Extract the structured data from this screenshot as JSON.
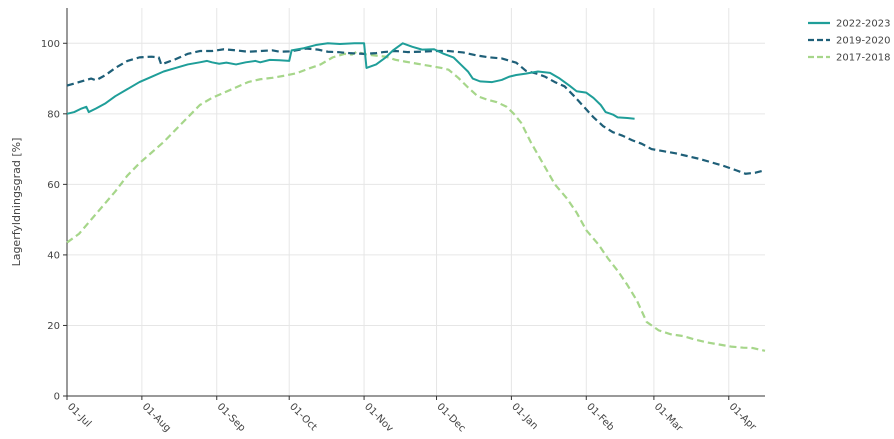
{
  "chart_data": {
    "type": "line",
    "title": "",
    "xlabel": "",
    "ylabel": "Lagerfyldningsgrad [%]",
    "x_range_days": [
      0,
      289
    ],
    "ylim": [
      0,
      110
    ],
    "y_ticks": [
      0,
      20,
      40,
      60,
      80,
      100
    ],
    "x_ticks": [
      {
        "day": 0,
        "label": "01-Jul"
      },
      {
        "day": 31,
        "label": "01-Aug"
      },
      {
        "day": 62,
        "label": "01-Sep"
      },
      {
        "day": 92,
        "label": "01-Oct"
      },
      {
        "day": 123,
        "label": "01-Nov"
      },
      {
        "day": 153,
        "label": "01-Dec"
      },
      {
        "day": 184,
        "label": "01-Jan"
      },
      {
        "day": 215,
        "label": "01-Feb"
      },
      {
        "day": 243,
        "label": "01-Mar"
      },
      {
        "day": 274,
        "label": "01-Apr"
      }
    ],
    "grid": true,
    "legend_position": "top-right",
    "series": [
      {
        "name": "2022-2023",
        "color": "#1f9e99",
        "style": "solid",
        "points": [
          [
            0,
            80
          ],
          [
            3,
            80.5
          ],
          [
            6,
            81.5
          ],
          [
            8,
            82
          ],
          [
            9,
            80.5
          ],
          [
            12,
            81.5
          ],
          [
            16,
            83
          ],
          [
            20,
            85
          ],
          [
            25,
            87
          ],
          [
            30,
            89
          ],
          [
            35,
            90.5
          ],
          [
            40,
            92
          ],
          [
            45,
            93
          ],
          [
            50,
            94
          ],
          [
            55,
            94.6
          ],
          [
            58,
            95
          ],
          [
            60,
            94.6
          ],
          [
            63,
            94.2
          ],
          [
            66,
            94.5
          ],
          [
            70,
            94
          ],
          [
            74,
            94.6
          ],
          [
            78,
            95
          ],
          [
            80,
            94.6
          ],
          [
            84,
            95.3
          ],
          [
            88,
            95.2
          ],
          [
            92,
            95
          ],
          [
            93,
            98
          ],
          [
            98,
            98.6
          ],
          [
            103,
            99.5
          ],
          [
            108,
            100
          ],
          [
            113,
            99.8
          ],
          [
            119,
            100
          ],
          [
            123,
            100
          ],
          [
            124,
            93
          ],
          [
            128,
            94
          ],
          [
            132,
            96
          ],
          [
            135,
            98
          ],
          [
            139,
            100
          ],
          [
            143,
            99
          ],
          [
            147,
            98.2
          ],
          [
            152,
            98.3
          ],
          [
            156,
            97
          ],
          [
            160,
            96
          ],
          [
            163,
            94
          ],
          [
            166,
            92
          ],
          [
            168,
            90
          ],
          [
            171,
            89.2
          ],
          [
            176,
            89
          ],
          [
            180,
            89.6
          ],
          [
            183,
            90.5
          ],
          [
            186,
            91
          ],
          [
            190,
            91.4
          ],
          [
            195,
            92
          ],
          [
            200,
            91.6
          ],
          [
            204,
            90
          ],
          [
            208,
            88
          ],
          [
            211,
            86.4
          ],
          [
            215,
            86
          ],
          [
            218,
            84.5
          ],
          [
            221,
            82.5
          ],
          [
            223,
            80.5
          ],
          [
            226,
            79.8
          ],
          [
            228,
            79
          ],
          [
            232,
            78.8
          ],
          [
            235,
            78.6
          ]
        ]
      },
      {
        "name": "2019-2020",
        "color": "#1e5f78",
        "style": "dashed",
        "points": [
          [
            0,
            88
          ],
          [
            5,
            89
          ],
          [
            10,
            90
          ],
          [
            12,
            89.5
          ],
          [
            16,
            91
          ],
          [
            20,
            93
          ],
          [
            25,
            95
          ],
          [
            30,
            96
          ],
          [
            35,
            96.2
          ],
          [
            38,
            96
          ],
          [
            39,
            94
          ],
          [
            41,
            94.5
          ],
          [
            45,
            95.5
          ],
          [
            50,
            97
          ],
          [
            55,
            97.8
          ],
          [
            60,
            97.8
          ],
          [
            65,
            98.3
          ],
          [
            70,
            98
          ],
          [
            75,
            97.6
          ],
          [
            80,
            97.8
          ],
          [
            85,
            98
          ],
          [
            88,
            97.6
          ],
          [
            92,
            97.7
          ],
          [
            95,
            98
          ],
          [
            99,
            98.5
          ],
          [
            104,
            98.2
          ],
          [
            108,
            97.6
          ],
          [
            112,
            97.5
          ],
          [
            117,
            97.2
          ],
          [
            123,
            97
          ],
          [
            128,
            97.2
          ],
          [
            131,
            97.5
          ],
          [
            136,
            97.8
          ],
          [
            141,
            97.5
          ],
          [
            146,
            97.6
          ],
          [
            152,
            97.8
          ],
          [
            158,
            97.8
          ],
          [
            164,
            97.4
          ],
          [
            170,
            96.5
          ],
          [
            175,
            96
          ],
          [
            180,
            95.7
          ],
          [
            186,
            94.5
          ],
          [
            190,
            92.2
          ],
          [
            195,
            91.3
          ],
          [
            198,
            90.5
          ],
          [
            202,
            89
          ],
          [
            206,
            87.8
          ],
          [
            210,
            85
          ],
          [
            214,
            82
          ],
          [
            218,
            79
          ],
          [
            222,
            76.5
          ],
          [
            226,
            74.8
          ],
          [
            230,
            73.8
          ],
          [
            234,
            72.5
          ],
          [
            238,
            71.5
          ],
          [
            242,
            70
          ],
          [
            247,
            69.4
          ],
          [
            252,
            68.8
          ],
          [
            257,
            68
          ],
          [
            262,
            67.2
          ],
          [
            267,
            66.2
          ],
          [
            272,
            65.2
          ],
          [
            277,
            64
          ],
          [
            281,
            63
          ],
          [
            285,
            63.3
          ],
          [
            289,
            64
          ]
        ]
      },
      {
        "name": "2017-2018",
        "color": "#a6d68a",
        "style": "dashed",
        "points": [
          [
            0,
            43.5
          ],
          [
            5,
            46
          ],
          [
            10,
            50
          ],
          [
            15,
            54
          ],
          [
            20,
            58
          ],
          [
            25,
            62.5
          ],
          [
            30,
            66
          ],
          [
            35,
            69
          ],
          [
            40,
            72
          ],
          [
            45,
            75.5
          ],
          [
            50,
            79
          ],
          [
            55,
            82.5
          ],
          [
            60,
            84.5
          ],
          [
            65,
            86
          ],
          [
            70,
            87.5
          ],
          [
            75,
            89
          ],
          [
            80,
            89.8
          ],
          [
            85,
            90.2
          ],
          [
            90,
            90.8
          ],
          [
            95,
            91.5
          ],
          [
            100,
            92.8
          ],
          [
            105,
            94
          ],
          [
            110,
            96
          ],
          [
            115,
            97
          ],
          [
            118,
            96.8
          ],
          [
            120,
            97.6
          ],
          [
            124,
            96.8
          ],
          [
            128,
            96.5
          ],
          [
            132,
            96.2
          ],
          [
            136,
            95.3
          ],
          [
            140,
            94.8
          ],
          [
            145,
            94.2
          ],
          [
            150,
            93.6
          ],
          [
            155,
            93
          ],
          [
            158,
            92.5
          ],
          [
            162,
            90.2
          ],
          [
            166,
            87.5
          ],
          [
            170,
            85
          ],
          [
            174,
            84
          ],
          [
            178,
            83.3
          ],
          [
            182,
            82
          ],
          [
            185,
            80
          ],
          [
            188,
            77.5
          ],
          [
            192,
            72
          ],
          [
            197,
            66
          ],
          [
            202,
            60
          ],
          [
            207,
            56
          ],
          [
            211,
            52
          ],
          [
            215,
            47
          ],
          [
            220,
            43
          ],
          [
            224,
            39
          ],
          [
            228,
            35.5
          ],
          [
            232,
            31.5
          ],
          [
            236,
            27
          ],
          [
            240,
            21
          ],
          [
            245,
            18.6
          ],
          [
            250,
            17.5
          ],
          [
            255,
            17
          ],
          [
            260,
            16
          ],
          [
            265,
            15.2
          ],
          [
            270,
            14.6
          ],
          [
            275,
            14
          ],
          [
            280,
            13.7
          ],
          [
            284,
            13.6
          ],
          [
            289,
            12.8
          ]
        ]
      }
    ]
  }
}
